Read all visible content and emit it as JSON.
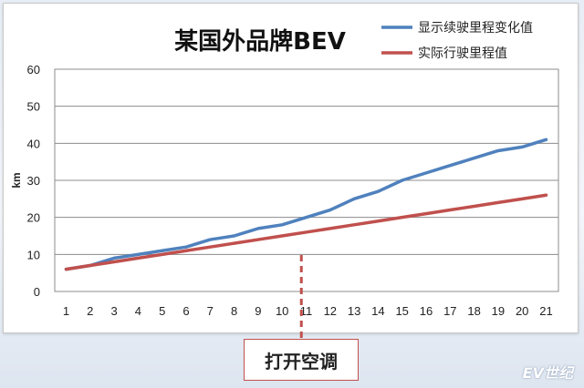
{
  "chart_data": {
    "type": "line",
    "title": "某国外品牌BEV",
    "xlabel": "",
    "ylabel": "km",
    "x": [
      1,
      2,
      3,
      4,
      5,
      6,
      7,
      8,
      9,
      10,
      11,
      12,
      13,
      14,
      15,
      16,
      17,
      18,
      19,
      20,
      21
    ],
    "ylim": [
      0,
      60
    ],
    "yticks": [
      0,
      10,
      20,
      30,
      40,
      50,
      60
    ],
    "grid": true,
    "legend": "top-right",
    "series": [
      {
        "name": "显示续驶里程变化值",
        "color": "#4f81bd",
        "values": [
          6,
          7,
          9,
          10,
          11,
          12,
          14,
          15,
          17,
          18,
          20,
          22,
          25,
          27,
          30,
          32,
          34,
          36,
          38,
          39,
          41
        ]
      },
      {
        "name": "实际行驶里程值",
        "color": "#c0504d",
        "values": [
          6,
          7,
          8,
          9,
          10,
          11,
          12,
          13,
          14,
          15,
          16,
          17,
          18,
          19,
          20,
          21,
          22,
          23,
          24,
          25,
          26
        ]
      }
    ],
    "annotation": {
      "x": 10.8,
      "label": "打开空调",
      "color": "#c0504d"
    }
  },
  "watermark": "EV世纪"
}
